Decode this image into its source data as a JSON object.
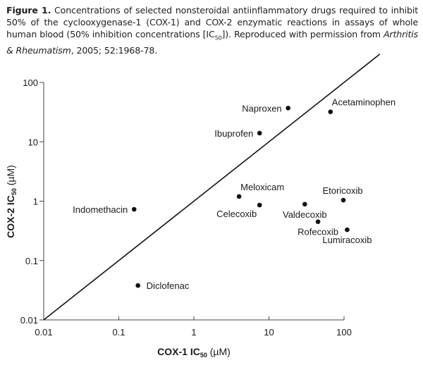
{
  "caption": {
    "label": "Figure 1.",
    "text_1": " Concentrations of selected nonsteroidal antiinflammatory drugs required to inhibit 50% of the cyclooxygenase-1 (COX-1) and COX-2 enzymatic reactions in assays of whole human blood (50% inhibition concentrations [IC",
    "sub": "50",
    "text_2": "]). Reproduced with permission from ",
    "journal": "Arthritis & Rheumatism",
    "text_3": ", 2005; 52:1968-78."
  },
  "chart_data": {
    "type": "scatter",
    "title": "",
    "xlabel": "COX-1 IC50 (µM)",
    "ylabel": "COX-2 IC50 (µM)",
    "xlabel_parts": {
      "main": "COX-1 IC",
      "sub": "50",
      "unit": " (µM)"
    },
    "ylabel_parts": {
      "main": "COX-2 IC",
      "sub": "50",
      "unit": " (µM)"
    },
    "xscale": "log",
    "yscale": "log",
    "xlim": [
      0.01,
      100
    ],
    "ylim": [
      0.01,
      100
    ],
    "xticks": [
      0.01,
      0.1,
      1,
      10,
      100
    ],
    "yticks": [
      0.01,
      0.1,
      1,
      10,
      100
    ],
    "xtick_labels": [
      "0.01",
      "0.1",
      "1",
      "10",
      "100"
    ],
    "ytick_labels": [
      "0.01",
      "0.1",
      "1",
      "10",
      "100"
    ],
    "grid": false,
    "reference_line": {
      "description": "line of equality (COX-1 IC50 = COX-2 IC50)",
      "from": [
        0.01,
        0.01
      ],
      "to": [
        300,
        300
      ]
    },
    "points": [
      {
        "name": "Naproxen",
        "x": 18,
        "y": 37,
        "label_side": "left"
      },
      {
        "name": "Acetaminophen",
        "x": 66,
        "y": 32,
        "label_side": "right-above"
      },
      {
        "name": "Ibuprofen",
        "x": 7.5,
        "y": 14,
        "label_side": "left"
      },
      {
        "name": "Indomethacin",
        "x": 0.16,
        "y": 0.73,
        "label_side": "left"
      },
      {
        "name": "Meloxicam",
        "x": 4.0,
        "y": 1.2,
        "label_side": "right-above"
      },
      {
        "name": "Celecoxib",
        "x": 7.5,
        "y": 0.86,
        "label_side": "left-below"
      },
      {
        "name": "Valdecoxib",
        "x": 30,
        "y": 0.89,
        "label_side": "below"
      },
      {
        "name": "Etoricoxib",
        "x": 98,
        "y": 1.04,
        "label_side": "above"
      },
      {
        "name": "Rofecoxib",
        "x": 45,
        "y": 0.45,
        "label_side": "below"
      },
      {
        "name": "Lumiracoxib",
        "x": 110,
        "y": 0.33,
        "label_side": "below"
      },
      {
        "name": "Diclofenac",
        "x": 0.18,
        "y": 0.038,
        "label_side": "right"
      }
    ]
  }
}
